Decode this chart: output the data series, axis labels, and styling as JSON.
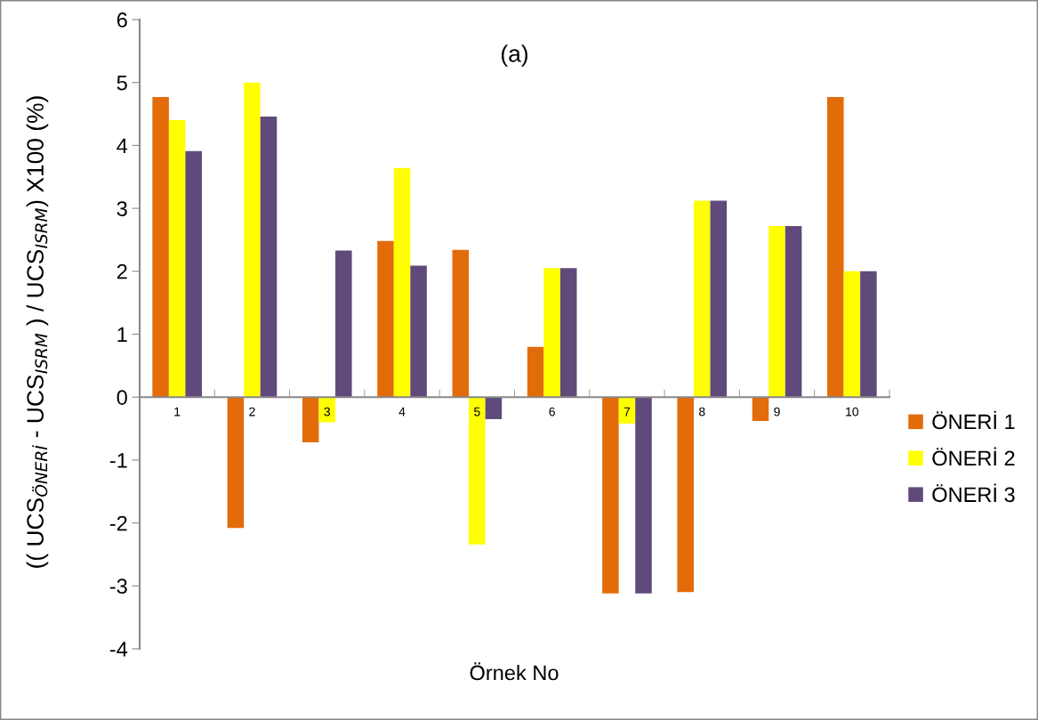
{
  "chart_data": {
    "type": "bar",
    "title": "(a)",
    "xlabel": "Örnek No",
    "ylabel": "(( UCS$_{ÖNERİ}$ - UCS$_{ISRM}$ ) / UCS$_{ISRM}$) X100 (%)",
    "categories": [
      "1",
      "2",
      "3",
      "4",
      "5",
      "6",
      "7",
      "8",
      "9",
      "10"
    ],
    "series": [
      {
        "name": "ÖNERİ 1",
        "color": "#e36c0a",
        "values": [
          4.77,
          -2.08,
          -0.72,
          2.48,
          2.34,
          0.8,
          -3.12,
          -3.1,
          -0.38,
          4.77
        ]
      },
      {
        "name": "ÖNERİ 2",
        "color": "#ffff00",
        "values": [
          4.4,
          5.0,
          -0.4,
          3.64,
          -2.34,
          2.05,
          -0.42,
          3.12,
          2.72,
          2.0
        ]
      },
      {
        "name": "ÖNERİ 3",
        "color": "#604a7b",
        "values": [
          3.91,
          4.46,
          2.33,
          2.09,
          -0.35,
          2.05,
          -3.12,
          3.12,
          2.72,
          2.0
        ]
      }
    ],
    "ylim": [
      -4,
      6
    ],
    "yticks": [
      -4,
      -3,
      -2,
      -1,
      0,
      1,
      2,
      3,
      4,
      5,
      6
    ],
    "grid": false,
    "legend": "right"
  }
}
